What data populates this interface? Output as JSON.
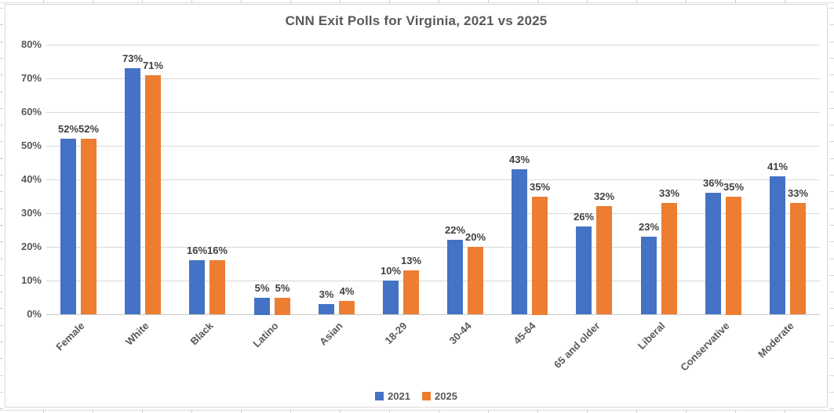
{
  "chart_data": {
    "type": "bar",
    "title": "CNN Exit Polls for Virginia, 2021 vs 2025",
    "categories": [
      "Female",
      "White",
      "Black",
      "Latino",
      "Asian",
      "18-29",
      "30-44",
      "45-64",
      "65 and older",
      "Liberal",
      "Conservative",
      "Moderate"
    ],
    "series": [
      {
        "name": "2021",
        "values": [
          52,
          73,
          16,
          5,
          3,
          10,
          22,
          43,
          26,
          23,
          36,
          41
        ]
      },
      {
        "name": "2025",
        "values": [
          52,
          71,
          16,
          5,
          4,
          13,
          20,
          35,
          32,
          33,
          35,
          33
        ]
      }
    ],
    "value_suffix": "%",
    "data_labels_shown": true,
    "xlabel": "",
    "ylabel": "",
    "ylim": [
      0,
      80
    ],
    "ytick_step": 10,
    "yticks": [
      "0%",
      "10%",
      "20%",
      "30%",
      "40%",
      "50%",
      "60%",
      "70%",
      "80%"
    ],
    "grid": true,
    "legend_position": "bottom",
    "legend": [
      "2021",
      "2025"
    ]
  },
  "style": {
    "series_colors": [
      "#4472C4",
      "#ED7D31"
    ],
    "title_color": "#595959",
    "axis_text_color": "#595959",
    "data_label_color": "#404040",
    "gridline_color": "#D9D9D9",
    "axis_line_color": "#C9C9C9",
    "chart_border_color": "#D9D9D9",
    "background_color": "#FFFFFF"
  }
}
